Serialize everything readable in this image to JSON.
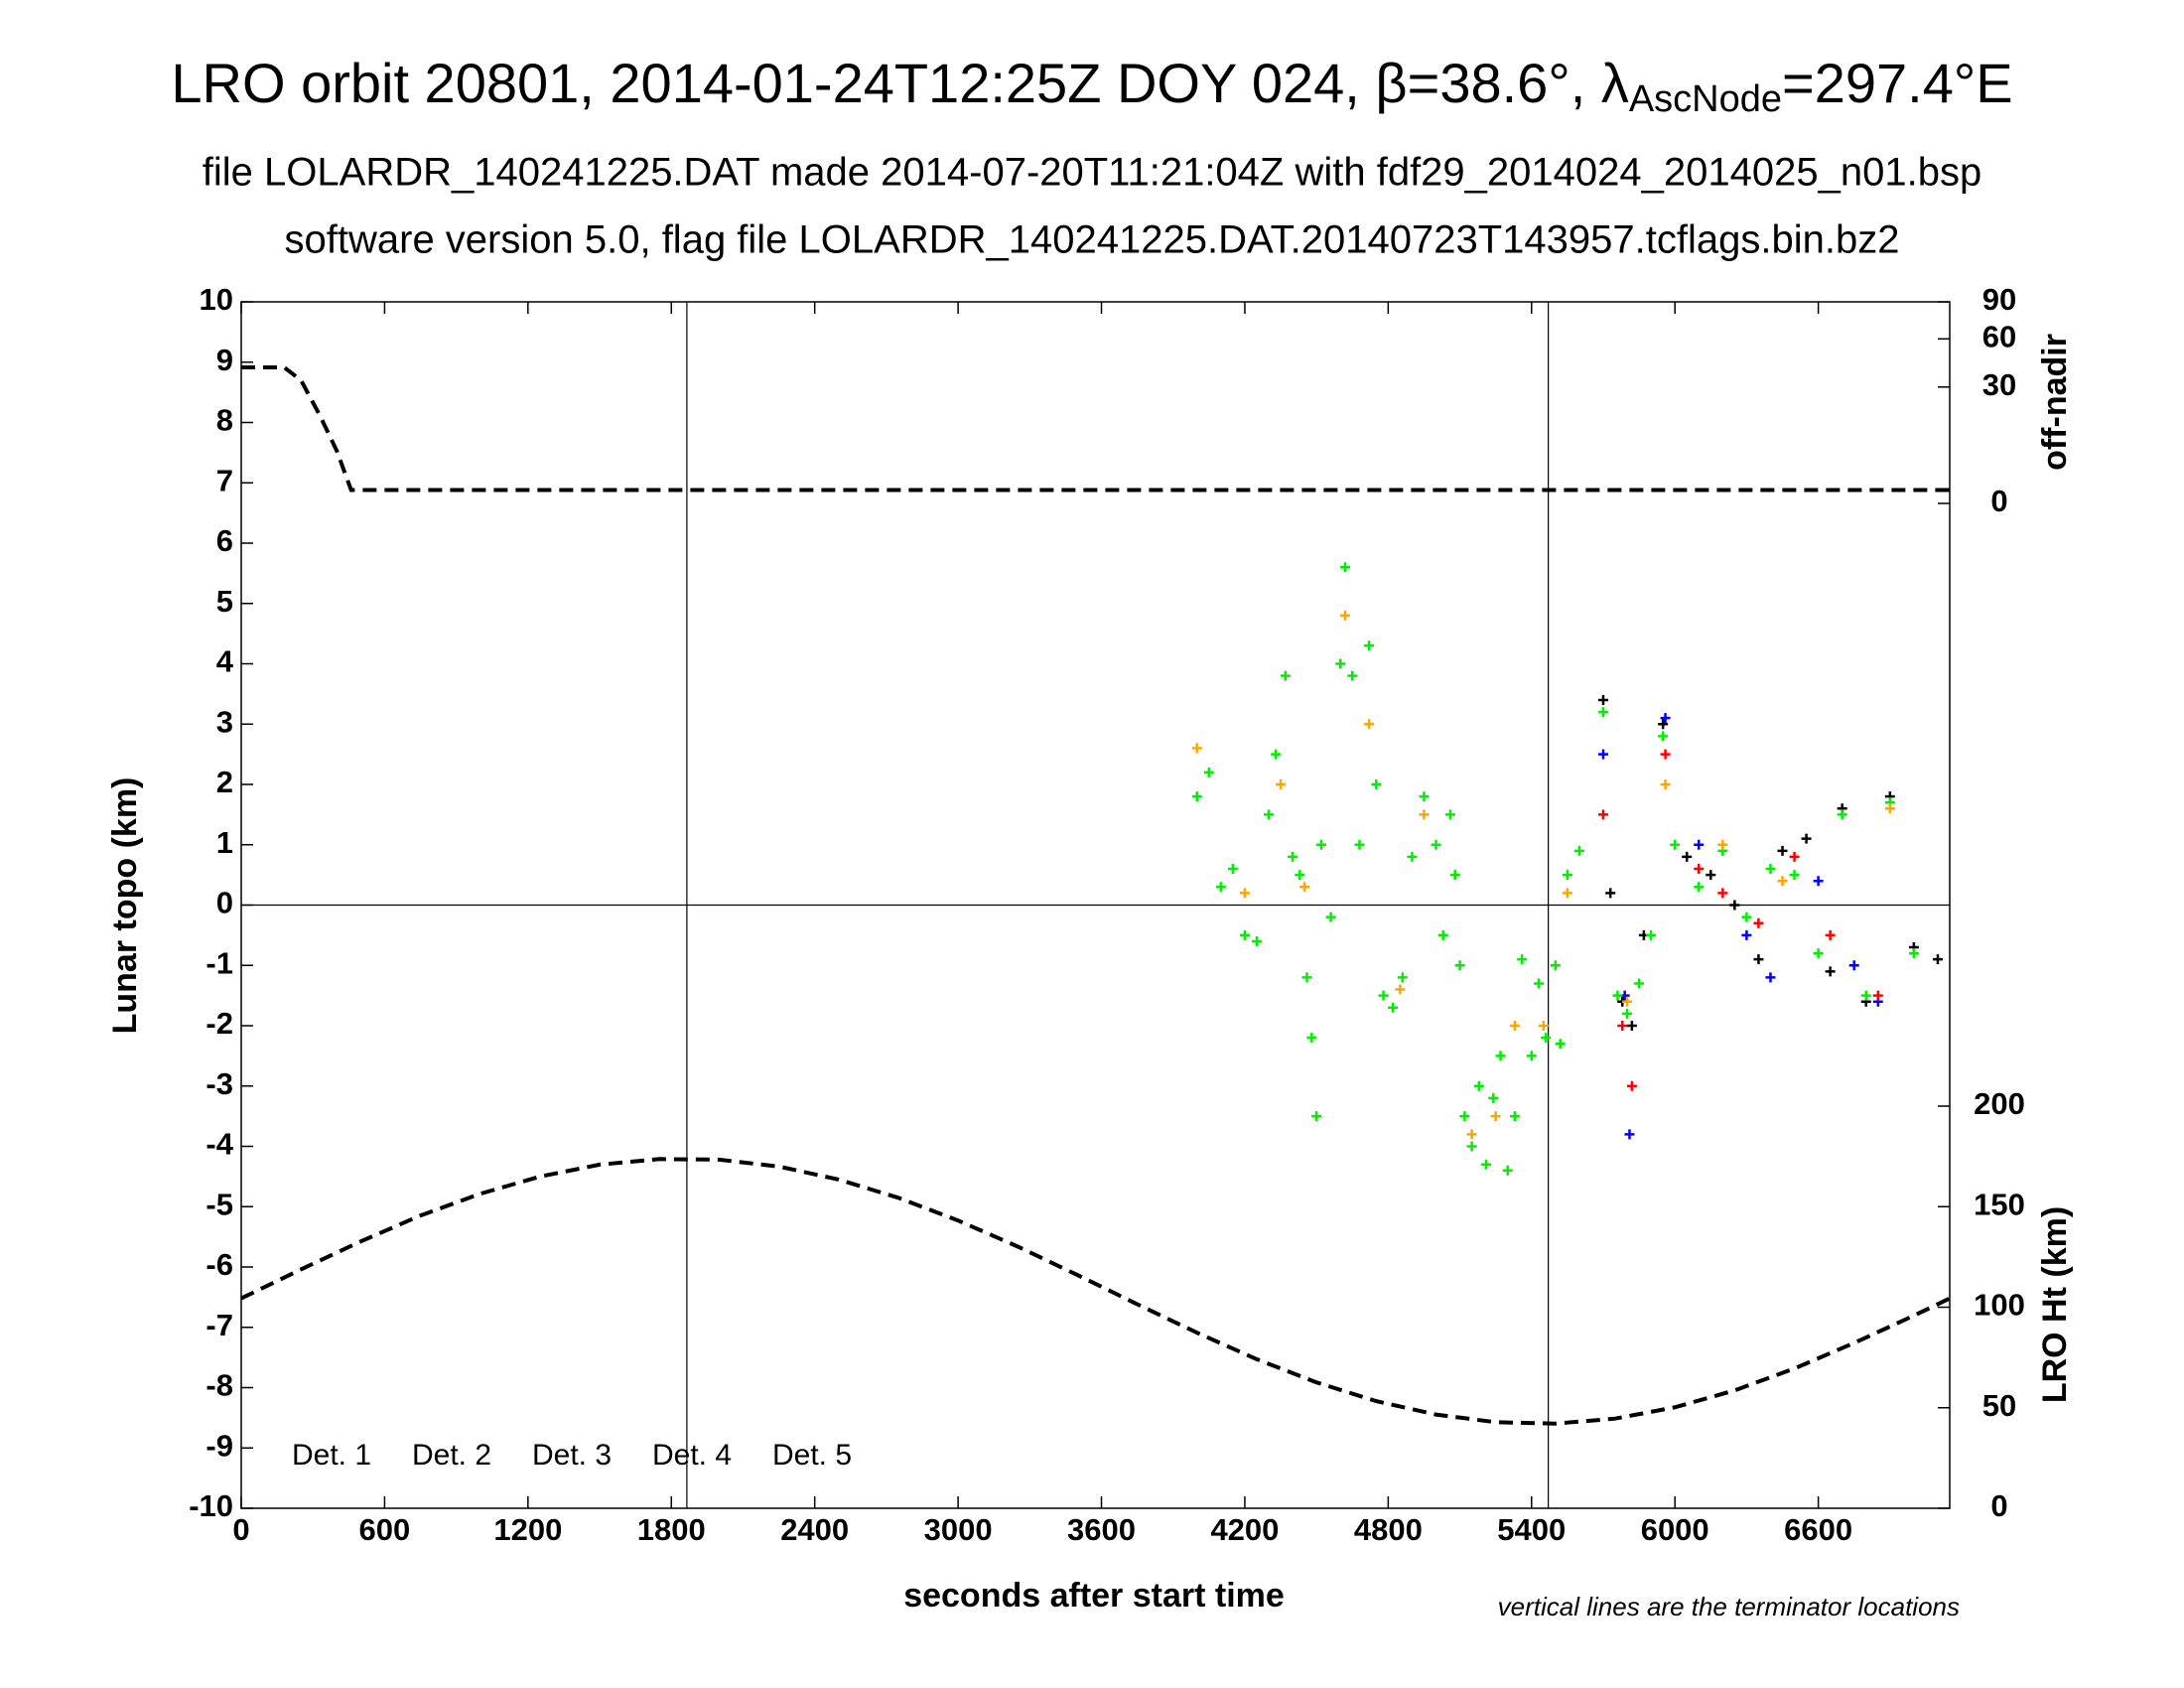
{
  "chart_data": {
    "type": "scatter",
    "title": [
      "LRO orbit 20801, 2014-01-24T12:25Z DOY 024, β=38.6°, λ",
      "AscNode",
      "=297.4°E"
    ],
    "subtitle": [
      "file LOLARDR_140241225.DAT made 2014-07-20T11:21:04Z with fdf29_2014024_2014025_n01.bsp",
      "software version 5.0, flag file LOLARDR_140241225.DAT.20140723T143957.tcflags.bin.bz2"
    ],
    "xlabel": "seconds after start time",
    "ylabel": "Lunar topo (km)",
    "y2label": "LRO Ht (km)",
    "y3label": "off-nadir",
    "note": "vertical lines are the terminator locations",
    "xlim": [
      0,
      7150
    ],
    "xticks": [
      0,
      600,
      1200,
      1800,
      2400,
      3000,
      3600,
      4200,
      4800,
      5400,
      6000,
      6600
    ],
    "ylim": [
      -10,
      10
    ],
    "yticks": [
      -10,
      -9,
      -8,
      -7,
      -6,
      -5,
      -4,
      -3,
      -2,
      -1,
      0,
      1,
      2,
      3,
      4,
      5,
      6,
      7,
      8,
      9,
      10
    ],
    "y2lim": [
      0,
      600
    ],
    "y2ticks": [
      0,
      50,
      100,
      150,
      200
    ],
    "y3lim": [
      0,
      90
    ],
    "y3scale": "sqrt",
    "y3ticks": [
      0,
      30,
      60,
      90
    ],
    "hlines": [
      0
    ],
    "vlines": [
      1865,
      5470
    ],
    "legend": "lower left",
    "series": [
      {
        "name": "Det. 1",
        "color": "#000000",
        "x": [
          5700,
          5730,
          5780,
          5820,
          5870,
          5950,
          6050,
          6150,
          6250,
          6350,
          6450,
          6550,
          6650,
          6700,
          6800,
          6900,
          7000,
          7100
        ],
        "values": [
          3.4,
          0.2,
          -1.6,
          -2.0,
          -0.5,
          3.0,
          0.8,
          0.5,
          0.0,
          -0.9,
          0.9,
          1.1,
          -1.1,
          1.6,
          -1.6,
          1.8,
          -0.7,
          -0.9
        ]
      },
      {
        "name": "Det. 2",
        "color": "#0000ff",
        "x": [
          5700,
          5790,
          5810,
          5960,
          6100,
          6300,
          6400,
          6600,
          6750,
          6850
        ],
        "values": [
          2.5,
          -1.5,
          -3.8,
          3.1,
          1.0,
          -0.5,
          -1.2,
          0.4,
          -1.0,
          -1.6
        ]
      },
      {
        "name": "Det. 3",
        "color": "#00ee00",
        "x": [
          4000,
          4050,
          4100,
          4150,
          4200,
          4250,
          4300,
          4330,
          4370,
          4400,
          4430,
          4460,
          4480,
          4500,
          4520,
          4560,
          4600,
          4620,
          4650,
          4680,
          4720,
          4750,
          4780,
          4820,
          4860,
          4900,
          4950,
          5000,
          5030,
          5060,
          5080,
          5100,
          5120,
          5150,
          5180,
          5210,
          5240,
          5270,
          5300,
          5330,
          5360,
          5400,
          5430,
          5460,
          5500,
          5520,
          5550,
          5600,
          5700,
          5760,
          5800,
          5850,
          5900,
          5950,
          6000,
          6100,
          6200,
          6300,
          6400,
          6500,
          6600,
          6700,
          6800,
          6900,
          7000
        ],
        "values": [
          1.8,
          2.2,
          0.3,
          0.6,
          -0.5,
          -0.6,
          1.5,
          2.5,
          3.8,
          0.8,
          0.5,
          -1.2,
          -2.2,
          -3.5,
          1.0,
          -0.2,
          4.0,
          5.6,
          3.8,
          1.0,
          4.3,
          2.0,
          -1.5,
          -1.7,
          -1.2,
          0.8,
          1.8,
          1.0,
          -0.5,
          1.5,
          0.5,
          -1.0,
          -3.5,
          -4.0,
          -3.0,
          -4.3,
          -3.2,
          -2.5,
          -4.4,
          -3.5,
          -0.9,
          -2.5,
          -1.3,
          -2.2,
          -1.0,
          -2.3,
          0.5,
          0.9,
          3.2,
          -1.5,
          -1.8,
          -1.3,
          -0.5,
          2.8,
          1.0,
          0.3,
          0.9,
          -0.2,
          0.6,
          0.5,
          -0.8,
          1.5,
          -1.5,
          1.7,
          -0.8
        ]
      },
      {
        "name": "Det. 4",
        "color": "#ffa500",
        "x": [
          4000,
          4200,
          4350,
          4450,
          4620,
          4720,
          4850,
          4950,
          5150,
          5250,
          5330,
          5450,
          5550,
          5800,
          5960,
          6200,
          6450,
          6900
        ],
        "values": [
          2.6,
          0.2,
          2.0,
          0.3,
          4.8,
          3.0,
          -1.4,
          1.5,
          -3.8,
          -3.5,
          -2.0,
          -2.0,
          0.2,
          -1.6,
          2.0,
          1.0,
          0.4,
          1.6
        ]
      },
      {
        "name": "Det. 5",
        "color": "#ff0000",
        "x": [
          5700,
          5780,
          5820,
          5960,
          6100,
          6200,
          6350,
          6500,
          6650,
          6850
        ],
        "values": [
          1.5,
          -2.0,
          -3.0,
          2.5,
          0.6,
          0.2,
          -0.3,
          0.8,
          -0.5,
          -1.5
        ]
      }
    ],
    "lines": [
      {
        "axis": "y3",
        "color": "#000000",
        "dash": true,
        "x": [
          0,
          180,
          250,
          330,
          400,
          460,
          7150
        ],
        "values": [
          41,
          41,
          33.6,
          17,
          6.1,
          0.4,
          0.4
        ]
      },
      {
        "axis": "y2",
        "color": "#000000",
        "dash": true,
        "x": [
          0,
          250,
          500,
          750,
          1000,
          1250,
          1500,
          1750,
          2000,
          2250,
          2500,
          2750,
          3000,
          3250,
          3500,
          3750,
          4000,
          4250,
          4500,
          4750,
          5000,
          5250,
          5500,
          5750,
          6000,
          6250,
          6500,
          6750,
          7000,
          7150
        ],
        "values": [
          104.4,
          118.8,
          132.7,
          145.6,
          156.4,
          165.0,
          170.9,
          173.7,
          173.4,
          170.0,
          163.5,
          154.4,
          143.1,
          130.1,
          116.0,
          101.5,
          87.3,
          74.1,
          62.6,
          53.3,
          46.6,
          42.8,
          42.1,
          44.6,
          50.2,
          58.6,
          69.5,
          82.2,
          95.8,
          104.4
        ]
      }
    ]
  }
}
